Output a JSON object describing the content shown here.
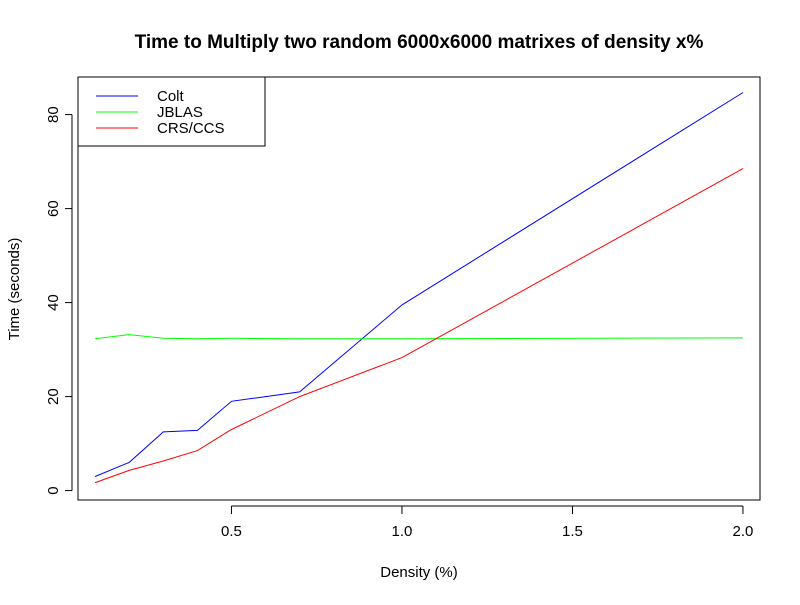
{
  "chart_data": {
    "type": "line",
    "title": "Time to Multiply two random 6000x6000 matrixes of density x%",
    "xlabel": "Density (%)",
    "ylabel": "Time (seconds)",
    "xlim": [
      0.05,
      2.05
    ],
    "ylim": [
      -2,
      88
    ],
    "x_ticks": [
      0.5,
      1.0,
      1.5,
      2.0
    ],
    "x_tick_labels": [
      "0.5",
      "1.0",
      "1.5",
      "2.0"
    ],
    "y_ticks": [
      0,
      20,
      40,
      60,
      80
    ],
    "y_tick_labels": [
      "0",
      "20",
      "40",
      "60",
      "80"
    ],
    "grid": false,
    "legend": {
      "placement": "top-left",
      "entries": [
        "Colt",
        "JBLAS",
        "CRS/CCS"
      ]
    },
    "x": [
      0.1,
      0.2,
      0.3,
      0.4,
      0.5,
      0.7,
      1.0,
      2.0
    ],
    "series": [
      {
        "name": "Colt",
        "color": "#0000ff",
        "values": [
          3.0,
          6.0,
          12.5,
          12.8,
          19.0,
          21.0,
          39.5,
          84.7
        ]
      },
      {
        "name": "JBLAS",
        "color": "#00ff00",
        "values": [
          32.3,
          33.2,
          32.4,
          32.3,
          32.4,
          32.3,
          32.3,
          32.5
        ]
      },
      {
        "name": "CRS/CCS",
        "color": "#ff0000",
        "values": [
          1.7,
          4.3,
          6.3,
          8.5,
          13.0,
          20.0,
          28.3,
          68.5
        ]
      }
    ]
  }
}
